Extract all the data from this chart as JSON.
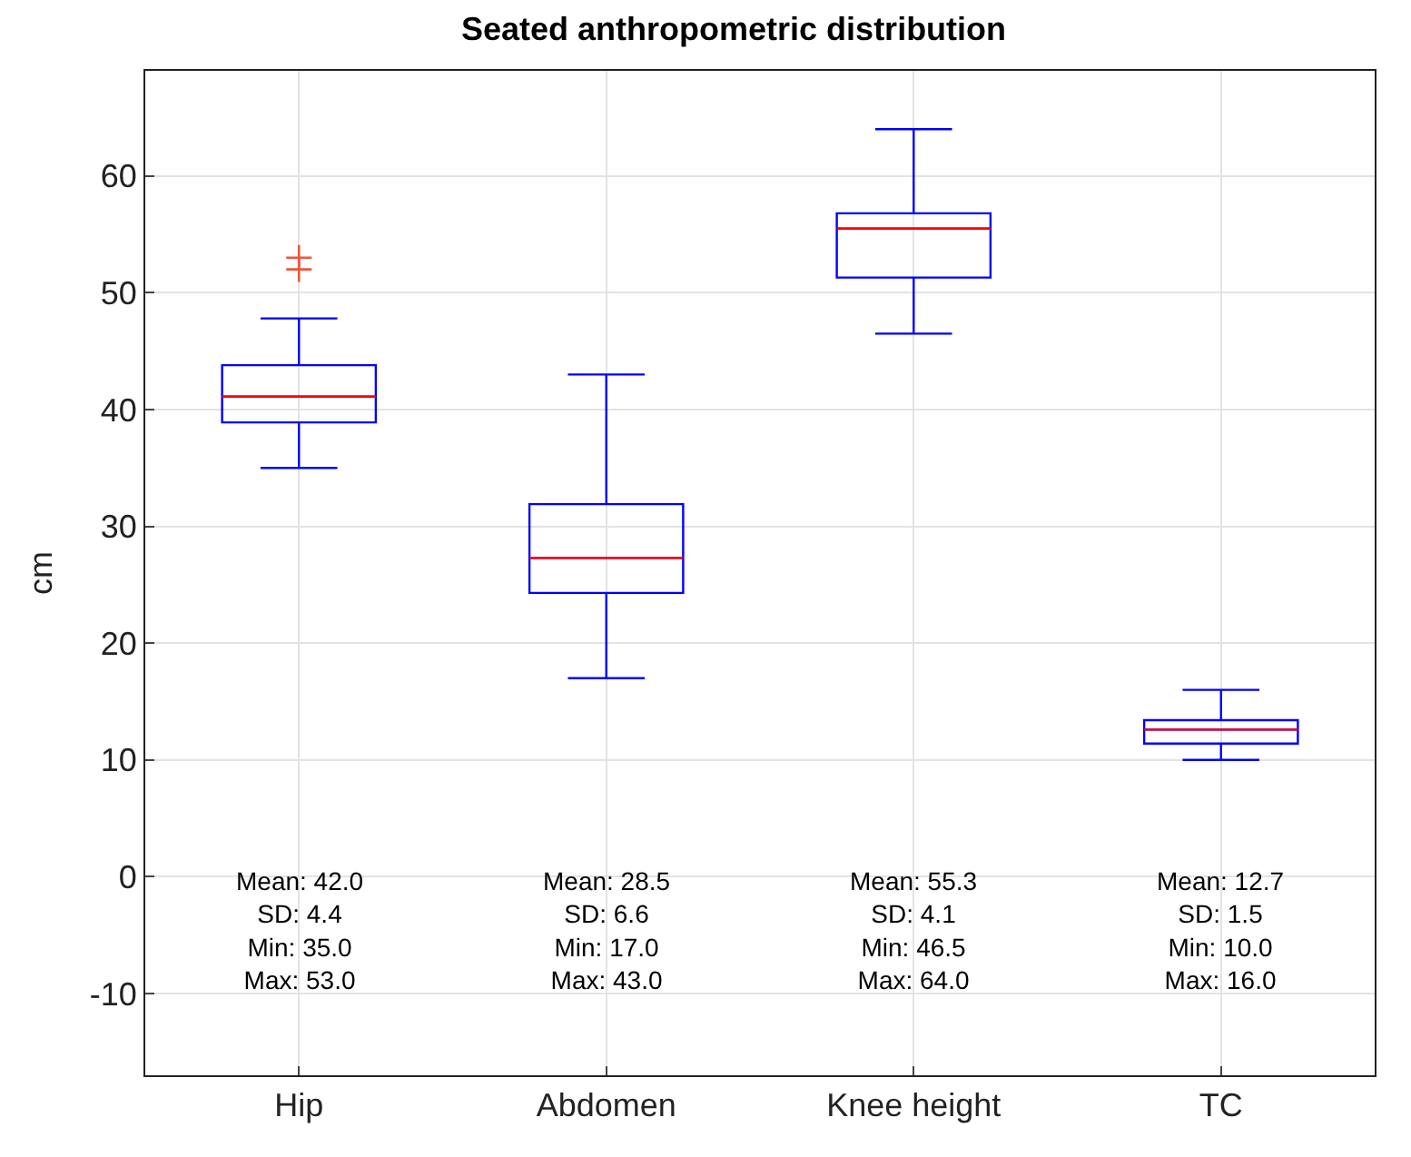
{
  "chart_data": {
    "type": "box",
    "title": "Seated anthropometric distribution",
    "ylabel": "cm",
    "categories": [
      "Hip",
      "Abdomen",
      "Knee height",
      "TC"
    ],
    "boxes": [
      {
        "low": 35,
        "q1": 38.9,
        "median": 41.1,
        "q3": 43.8,
        "high": 47.8,
        "outliers": [
          52,
          53
        ]
      },
      {
        "low": 17,
        "q1": 24.3,
        "median": 27.3,
        "q3": 31.9,
        "high": 43
      },
      {
        "low": 46.5,
        "q1": 51.3,
        "median": 55.5,
        "q3": 56.8,
        "high": 64
      },
      {
        "low": 10,
        "q1": 11.4,
        "median": 12.6,
        "q3": 13.4,
        "high": 16
      }
    ],
    "color": "#0000ff",
    "marker": "cross",
    "annotations": [
      "Mean: 42.0\nSD: 4.4\nMin: 35.0\nMax: 53.0",
      "Mean: 28.5\nSD: 6.6\nMin: 17.0\nMax: 43.0",
      "Mean: 55.3\nSD: 4.1\nMin: 46.5\nMax: 64.0",
      "Mean: 12.7\nSD: 1.5\nMin: 10.0\nMax: 16.0"
    ],
    "ylim": [
      -17,
      69
    ],
    "yticks": [
      -10,
      0,
      10,
      20,
      30,
      40,
      50,
      60
    ],
    "grid": true
  }
}
